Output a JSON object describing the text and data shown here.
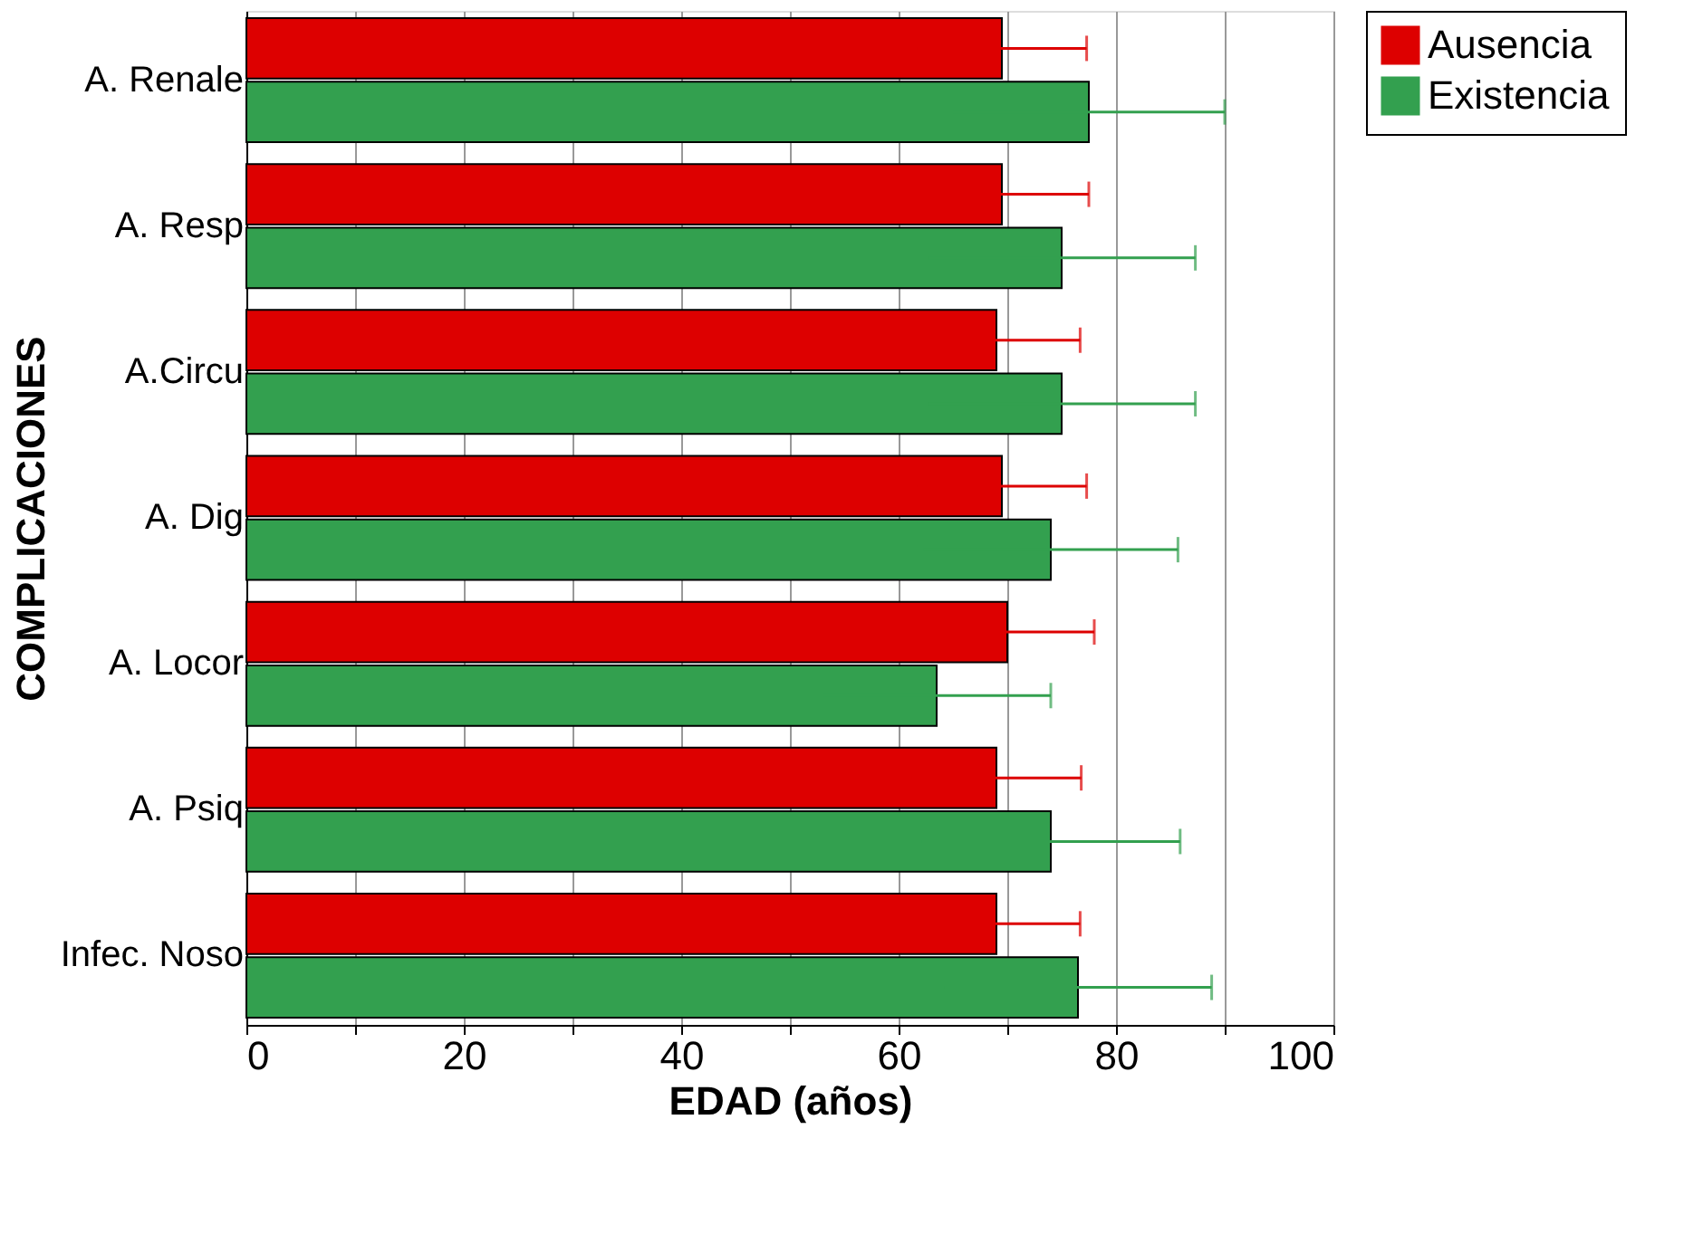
{
  "chart_data": {
    "type": "bar",
    "orientation": "horizontal",
    "categories": [
      "A. Renale",
      "A. Resp",
      "A.Circu",
      "A. Dig",
      "A. Locor",
      "A. Psiq",
      "Infec. Noso"
    ],
    "series": [
      {
        "name": "Ausencia",
        "color": "#dd0000",
        "values": [
          69.5,
          69.5,
          69,
          69.5,
          70,
          69,
          69
        ],
        "errors": [
          7.8,
          8,
          7.7,
          7.8,
          8,
          7.8,
          7.7
        ]
      },
      {
        "name": "Existencia",
        "color": "#33a04f",
        "values": [
          77.5,
          75,
          75,
          74,
          63.5,
          74,
          76.5
        ],
        "errors": [
          12.5,
          12.3,
          12.3,
          11.7,
          10.5,
          11.9,
          12.3
        ]
      }
    ],
    "xlabel": "EDAD (años)",
    "ylabel": "COMPLICACIONES",
    "xlim": [
      0,
      100
    ],
    "xticks": [
      0,
      {
        "value": 10,
        "label": null
      },
      20,
      {
        "value": 30,
        "label": null
      },
      40,
      {
        "value": 50,
        "label": null
      },
      60,
      {
        "value": 70,
        "label": null
      },
      80,
      {
        "value": 90,
        "label": null
      },
      100
    ],
    "grid": "x",
    "legend": "right"
  }
}
